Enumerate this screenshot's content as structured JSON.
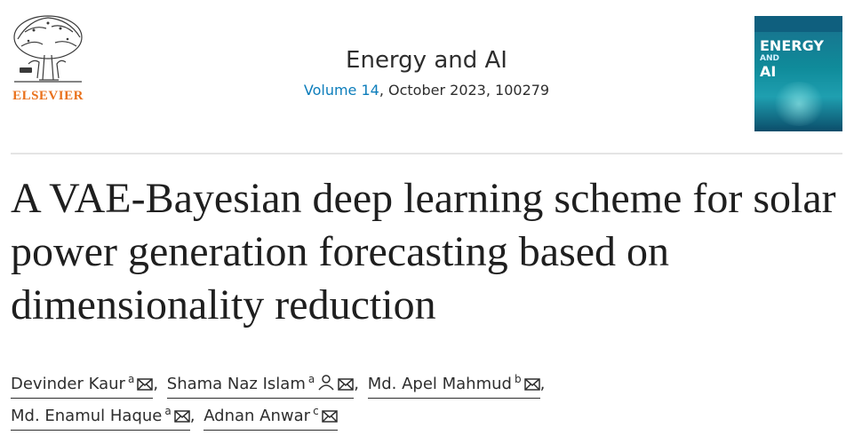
{
  "publisher": {
    "name": "ELSEVIER"
  },
  "journal": {
    "title": "Energy and AI",
    "volume_label": "Volume 14",
    "issue_info": ", October 2023, 100279"
  },
  "cover": {
    "line1": "ENERGY",
    "line2": "AND",
    "line3": "AI"
  },
  "article": {
    "title": "A VAE-Bayesian deep learning scheme for solar power generation forecasting based on dimensionality reduction"
  },
  "authors": [
    {
      "name": "Devinder Kaur",
      "affiliation": "a",
      "has_person_icon": false
    },
    {
      "name": "Shama Naz Islam",
      "affiliation": "a",
      "has_person_icon": true
    },
    {
      "name": "Md. Apel Mahmud",
      "affiliation": "b",
      "has_person_icon": false
    },
    {
      "name": "Md. Enamul Haque",
      "affiliation": "a",
      "has_person_icon": false
    },
    {
      "name": "Adnan Anwar",
      "affiliation": "c",
      "has_person_icon": false
    }
  ],
  "separator": ","
}
